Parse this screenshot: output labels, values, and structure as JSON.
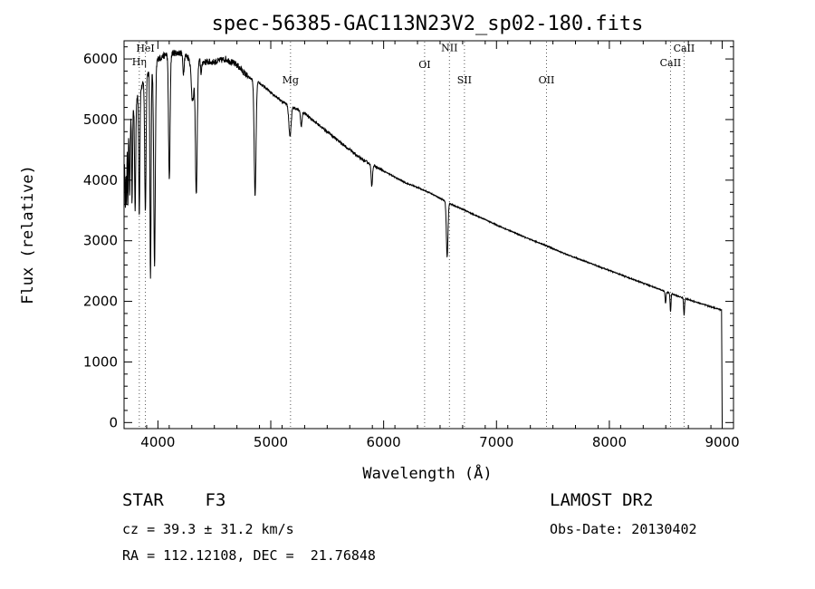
{
  "chart_data": {
    "type": "line",
    "title": "spec-56385-GAC113N23V2_sp02-180.fits",
    "xlabel": "Wavelength (Å)",
    "ylabel": "Flux (relative)",
    "xlim": [
      3700,
      9100
    ],
    "ylim": [
      -100,
      6300
    ],
    "xticks": [
      "4000",
      "5000",
      "6000",
      "7000",
      "8000",
      "9000"
    ],
    "xtick_values": [
      4000,
      5000,
      6000,
      7000,
      8000,
      9000
    ],
    "yticks": [
      "0",
      "1000",
      "2000",
      "3000",
      "4000",
      "5000",
      "6000"
    ],
    "ytick_values": [
      0,
      1000,
      2000,
      3000,
      4000,
      5000,
      6000
    ],
    "grid": false,
    "series_color": "#000000",
    "line_color": "#555555",
    "spectral_lines": [
      {
        "label": "Hη",
        "wavelength": 3835,
        "label_flux": 5900
      },
      {
        "label": "HeI",
        "wavelength": 3889,
        "label_flux": 6120
      },
      {
        "label": "Mg",
        "wavelength": 5175,
        "label_flux": 5600
      },
      {
        "label": "OI",
        "wavelength": 6363,
        "label_flux": 5850
      },
      {
        "label": "NII",
        "wavelength": 6583,
        "label_flux": 6130
      },
      {
        "label": "SII",
        "wavelength": 6716,
        "label_flux": 5600
      },
      {
        "label": "OII",
        "wavelength": 7443,
        "label_flux": 5600
      },
      {
        "label": "CaII",
        "wavelength": 8542,
        "label_flux": 5880
      },
      {
        "label": "CaII",
        "wavelength": 8662,
        "label_flux": 6120
      }
    ],
    "continuum": [
      [
        3700,
        4150
      ],
      [
        3720,
        4600
      ],
      [
        3750,
        5000
      ],
      [
        3800,
        5300
      ],
      [
        3850,
        5500
      ],
      [
        3900,
        5750
      ],
      [
        3950,
        5800
      ],
      [
        4000,
        6000
      ],
      [
        4100,
        6100
      ],
      [
        4200,
        6100
      ],
      [
        4300,
        6000
      ],
      [
        4400,
        5950
      ],
      [
        4500,
        5950
      ],
      [
        4600,
        6000
      ],
      [
        4700,
        5900
      ],
      [
        4800,
        5700
      ],
      [
        4900,
        5600
      ],
      [
        5000,
        5450
      ],
      [
        5100,
        5300
      ],
      [
        5200,
        5200
      ],
      [
        5300,
        5100
      ],
      [
        5400,
        4950
      ],
      [
        5500,
        4800
      ],
      [
        5600,
        4650
      ],
      [
        5700,
        4500
      ],
      [
        5800,
        4350
      ],
      [
        5900,
        4250
      ],
      [
        6000,
        4150
      ],
      [
        6100,
        4050
      ],
      [
        6200,
        3950
      ],
      [
        6300,
        3880
      ],
      [
        6400,
        3800
      ],
      [
        6500,
        3700
      ],
      [
        6600,
        3600
      ],
      [
        6700,
        3520
      ],
      [
        6800,
        3430
      ],
      [
        6900,
        3350
      ],
      [
        7000,
        3260
      ],
      [
        7100,
        3180
      ],
      [
        7200,
        3100
      ],
      [
        7300,
        3020
      ],
      [
        7400,
        2950
      ],
      [
        7500,
        2870
      ],
      [
        7600,
        2790
      ],
      [
        7700,
        2720
      ],
      [
        7800,
        2650
      ],
      [
        7900,
        2580
      ],
      [
        8000,
        2510
      ],
      [
        8100,
        2440
      ],
      [
        8200,
        2370
      ],
      [
        8300,
        2300
      ],
      [
        8400,
        2230
      ],
      [
        8500,
        2160
      ],
      [
        8600,
        2090
      ],
      [
        8700,
        2030
      ],
      [
        8800,
        1970
      ],
      [
        8900,
        1910
      ],
      [
        8990,
        1860
      ]
    ],
    "absorption_features": [
      [
        3712,
        900,
        3
      ],
      [
        3722,
        1000,
        3
      ],
      [
        3734,
        1150,
        3
      ],
      [
        3750,
        1300,
        4
      ],
      [
        3771,
        1500,
        4
      ],
      [
        3798,
        1800,
        5
      ],
      [
        3835,
        2000,
        5
      ],
      [
        3889,
        2200,
        6
      ],
      [
        3934,
        3400,
        5
      ],
      [
        3970,
        3300,
        7
      ],
      [
        4101,
        2100,
        7
      ],
      [
        4226,
        300,
        6
      ],
      [
        4308,
        700,
        12
      ],
      [
        4340,
        2200,
        8
      ],
      [
        4384,
        200,
        5
      ],
      [
        4861,
        1900,
        8
      ],
      [
        5170,
        500,
        10
      ],
      [
        5270,
        250,
        6
      ],
      [
        5895,
        350,
        6
      ],
      [
        6563,
        900,
        7
      ],
      [
        8498,
        200,
        4
      ],
      [
        8542,
        300,
        4
      ],
      [
        8662,
        280,
        4
      ]
    ],
    "edge": {
      "drop_start": 8995,
      "drop_end": 9000
    }
  },
  "info": {
    "object_line": "STAR    F3",
    "survey": "LAMOST DR2",
    "cz": "cz = 39.3 ± 31.2 km/s",
    "obs_date": "Obs-Date: 20130402",
    "coords": "RA = 112.12108, DEC =  21.76848"
  }
}
